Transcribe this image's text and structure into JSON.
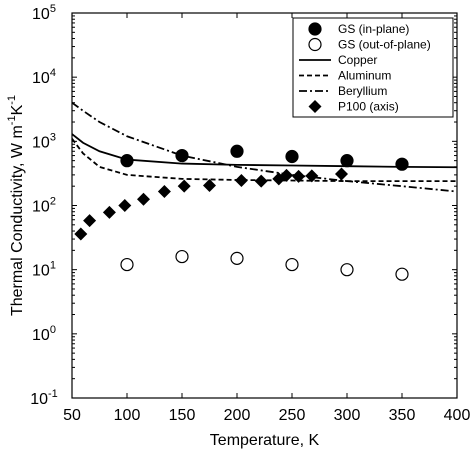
{
  "chart_data": {
    "type": "line",
    "x_label": "Temperature, K",
    "y_label": "Thermal Conductivity, W m^{-1}K^{-1}",
    "xlim": [
      50,
      400
    ],
    "xticks": [
      50,
      100,
      150,
      200,
      250,
      300,
      350,
      400
    ],
    "ylim": [
      0.1,
      100000
    ],
    "log_y": true,
    "yticks": [
      {
        "value": 0.1,
        "label": "10^{-1}"
      },
      {
        "value": 1,
        "label": "10^{0}"
      },
      {
        "value": 10,
        "label": "10^{1}"
      },
      {
        "value": 100,
        "label": "10^{2}"
      },
      {
        "value": 1000,
        "label": "10^{3}"
      },
      {
        "value": 10000,
        "label": "10^{4}"
      },
      {
        "value": 100000,
        "label": "10^{5}"
      }
    ],
    "legend": "upper right",
    "series": [
      {
        "name": "GS (in-plane)",
        "marker": "filled-circle",
        "color": "#000",
        "x": [
          100,
          150,
          200,
          250,
          300,
          350
        ],
        "values": [
          500,
          600,
          700,
          580,
          500,
          440
        ]
      },
      {
        "name": "GS (out-of-plane)",
        "marker": "open-circle",
        "color": "#000",
        "x": [
          100,
          150,
          200,
          250,
          300,
          350
        ],
        "values": [
          12,
          16,
          15,
          12,
          10,
          8.5
        ]
      },
      {
        "name": "Copper",
        "line": "solid",
        "color": "#000",
        "x": [
          50,
          60,
          75,
          100,
          150,
          200,
          250,
          300,
          350,
          400
        ],
        "values": [
          1300,
          950,
          700,
          520,
          450,
          430,
          420,
          410,
          400,
          395
        ]
      },
      {
        "name": "Aluminum",
        "line": "dashed",
        "color": "#000",
        "x": [
          50,
          60,
          75,
          100,
          150,
          200,
          250,
          300,
          350,
          400
        ],
        "values": [
          1100,
          650,
          400,
          300,
          260,
          250,
          245,
          240,
          240,
          240
        ]
      },
      {
        "name": "Beryllium",
        "line": "dashdot",
        "color": "#000",
        "x": [
          50,
          60,
          75,
          100,
          150,
          200,
          250,
          300,
          350,
          400
        ],
        "values": [
          4000,
          3000,
          2000,
          1200,
          600,
          400,
          300,
          240,
          200,
          165
        ]
      },
      {
        "name": "P100 (axis)",
        "marker": "diamond",
        "color": "#000",
        "x": [
          58,
          66,
          84,
          98,
          115,
          134,
          152,
          175,
          204,
          222,
          238,
          245,
          256,
          268,
          295
        ],
        "values": [
          36,
          58,
          78,
          100,
          125,
          165,
          200,
          205,
          245,
          240,
          260,
          295,
          285,
          290,
          310
        ]
      }
    ]
  }
}
